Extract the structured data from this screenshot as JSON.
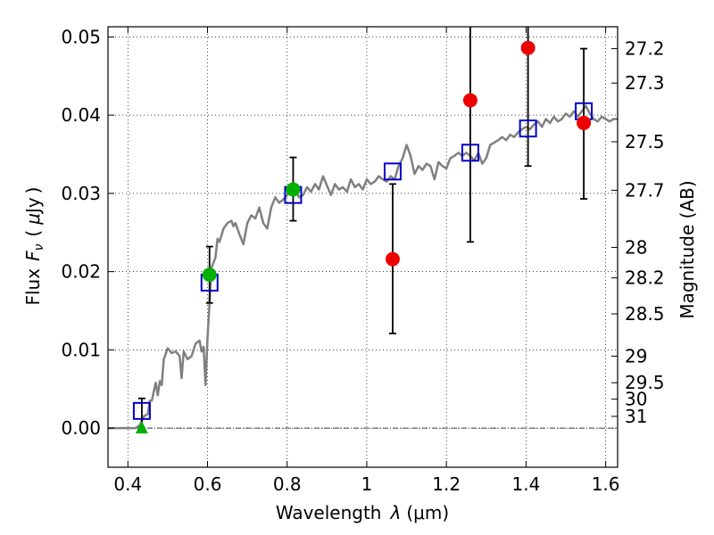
{
  "chart_data": {
    "type": "scatter",
    "xlabel": "Wavelength",
    "xlabel_symbol": "λ",
    "xlabel_unit_open": "(",
    "xlabel_unit": "μm",
    "xlabel_unit_close": ")",
    "ylabel": "Flux",
    "ylabel_symbol": "F",
    "ylabel_symbol_sub": "ν",
    "ylabel_unit_open": "(",
    "ylabel_unit_mu": "μ",
    "ylabel_unit": "Jy",
    "ylabel_unit_close": ")",
    "ylabel_right": "Magnitude (AB)",
    "xlim": [
      0.35,
      1.63
    ],
    "ylim": [
      -0.005,
      0.0513
    ],
    "grid": true,
    "x_ticks": [
      0.4,
      0.6,
      0.8,
      1.0,
      1.2,
      1.4,
      1.6
    ],
    "x_tick_labels": [
      "0.4",
      "0.6",
      "0.8",
      "1",
      "1.2",
      "1.4",
      "1.6"
    ],
    "y_ticks": [
      0.0,
      0.01,
      0.02,
      0.03,
      0.04,
      0.05
    ],
    "y_tick_labels": [
      "0.00",
      "0.01",
      "0.02",
      "0.03",
      "0.04",
      "0.05"
    ],
    "mag_ticks": [
      {
        "label": "27.2",
        "y": 0.0485
      },
      {
        "label": "27.3",
        "y": 0.0441
      },
      {
        "label": "27.5",
        "y": 0.0366
      },
      {
        "label": "27.7",
        "y": 0.0304
      },
      {
        "label": "28",
        "y": 0.0231
      },
      {
        "label": "28.2",
        "y": 0.0192
      },
      {
        "label": "28.5",
        "y": 0.0146
      },
      {
        "label": "29",
        "y": 0.0092
      },
      {
        "label": "29.5",
        "y": 0.0058
      },
      {
        "label": "30",
        "y": 0.0037
      },
      {
        "label": "31",
        "y": 0.0015
      }
    ],
    "model_spectrum": {
      "color": "#808080",
      "points": [
        [
          0.35,
          0.0
        ],
        [
          0.4,
          0.0
        ],
        [
          0.42,
          0.0
        ],
        [
          0.43,
          0.0004
        ],
        [
          0.44,
          0.0015
        ],
        [
          0.45,
          0.0018
        ],
        [
          0.455,
          0.0035
        ],
        [
          0.46,
          0.0035
        ],
        [
          0.47,
          0.0058
        ],
        [
          0.475,
          0.0042
        ],
        [
          0.48,
          0.006
        ],
        [
          0.485,
          0.0055
        ],
        [
          0.49,
          0.0088
        ],
        [
          0.495,
          0.0095
        ],
        [
          0.5,
          0.0102
        ],
        [
          0.51,
          0.0096
        ],
        [
          0.52,
          0.0098
        ],
        [
          0.53,
          0.0092
        ],
        [
          0.535,
          0.0064
        ],
        [
          0.54,
          0.0098
        ],
        [
          0.55,
          0.0088
        ],
        [
          0.56,
          0.0092
        ],
        [
          0.57,
          0.0108
        ],
        [
          0.58,
          0.0112
        ],
        [
          0.585,
          0.0098
        ],
        [
          0.59,
          0.0104
        ],
        [
          0.595,
          0.0055
        ],
        [
          0.6,
          0.0115
        ],
        [
          0.605,
          0.016
        ],
        [
          0.61,
          0.0205
        ],
        [
          0.62,
          0.0218
        ],
        [
          0.625,
          0.0242
        ],
        [
          0.63,
          0.0238
        ],
        [
          0.64,
          0.0255
        ],
        [
          0.65,
          0.0262
        ],
        [
          0.66,
          0.0265
        ],
        [
          0.665,
          0.0258
        ],
        [
          0.67,
          0.0262
        ],
        [
          0.68,
          0.0248
        ],
        [
          0.69,
          0.0235
        ],
        [
          0.7,
          0.0262
        ],
        [
          0.71,
          0.0272
        ],
        [
          0.72,
          0.0268
        ],
        [
          0.73,
          0.0282
        ],
        [
          0.74,
          0.0262
        ],
        [
          0.75,
          0.0255
        ],
        [
          0.76,
          0.0282
        ],
        [
          0.77,
          0.0295
        ],
        [
          0.78,
          0.0288
        ],
        [
          0.79,
          0.0292
        ],
        [
          0.8,
          0.0298
        ],
        [
          0.81,
          0.0302
        ],
        [
          0.82,
          0.0305
        ],
        [
          0.83,
          0.0295
        ],
        [
          0.84,
          0.0298
        ],
        [
          0.85,
          0.0308
        ],
        [
          0.86,
          0.0302
        ],
        [
          0.87,
          0.0312
        ],
        [
          0.88,
          0.0305
        ],
        [
          0.89,
          0.0322
        ],
        [
          0.9,
          0.031
        ],
        [
          0.91,
          0.0298
        ],
        [
          0.92,
          0.0312
        ],
        [
          0.93,
          0.0305
        ],
        [
          0.94,
          0.0308
        ],
        [
          0.95,
          0.0302
        ],
        [
          0.96,
          0.0318
        ],
        [
          0.97,
          0.0308
        ],
        [
          0.98,
          0.0312
        ],
        [
          0.99,
          0.0305
        ],
        [
          1.0,
          0.0318
        ],
        [
          1.01,
          0.0312
        ],
        [
          1.02,
          0.0315
        ],
        [
          1.03,
          0.0322
        ],
        [
          1.04,
          0.0318
        ],
        [
          1.05,
          0.0315
        ],
        [
          1.06,
          0.0322
        ],
        [
          1.07,
          0.0318
        ],
        [
          1.08,
          0.0335
        ],
        [
          1.09,
          0.0345
        ],
        [
          1.1,
          0.0362
        ],
        [
          1.11,
          0.0348
        ],
        [
          1.12,
          0.0325
        ],
        [
          1.13,
          0.0335
        ],
        [
          1.14,
          0.033
        ],
        [
          1.15,
          0.0338
        ],
        [
          1.16,
          0.0335
        ],
        [
          1.17,
          0.0318
        ],
        [
          1.18,
          0.034
        ],
        [
          1.19,
          0.0335
        ],
        [
          1.2,
          0.0332
        ],
        [
          1.21,
          0.0345
        ],
        [
          1.22,
          0.0348
        ],
        [
          1.23,
          0.0352
        ],
        [
          1.24,
          0.0348
        ],
        [
          1.25,
          0.0352
        ],
        [
          1.26,
          0.0348
        ],
        [
          1.27,
          0.0342
        ],
        [
          1.28,
          0.0352
        ],
        [
          1.29,
          0.0338
        ],
        [
          1.3,
          0.0345
        ],
        [
          1.31,
          0.0362
        ],
        [
          1.32,
          0.0365
        ],
        [
          1.33,
          0.0368
        ],
        [
          1.34,
          0.0372
        ],
        [
          1.35,
          0.0368
        ],
        [
          1.36,
          0.0375
        ],
        [
          1.37,
          0.0372
        ],
        [
          1.38,
          0.0378
        ],
        [
          1.39,
          0.0382
        ],
        [
          1.4,
          0.0385
        ],
        [
          1.41,
          0.0382
        ],
        [
          1.42,
          0.0388
        ],
        [
          1.43,
          0.0392
        ],
        [
          1.44,
          0.0385
        ],
        [
          1.45,
          0.0395
        ],
        [
          1.46,
          0.039
        ],
        [
          1.47,
          0.0398
        ],
        [
          1.48,
          0.0392
        ],
        [
          1.49,
          0.0395
        ],
        [
          1.5,
          0.0402
        ],
        [
          1.51,
          0.0398
        ],
        [
          1.52,
          0.0405
        ],
        [
          1.53,
          0.0398
        ],
        [
          1.54,
          0.0405
        ],
        [
          1.55,
          0.0412
        ],
        [
          1.56,
          0.0402
        ],
        [
          1.57,
          0.0395
        ],
        [
          1.58,
          0.0392
        ],
        [
          1.59,
          0.0398
        ],
        [
          1.6,
          0.0395
        ],
        [
          1.61,
          0.0392
        ],
        [
          1.62,
          0.0395
        ],
        [
          1.63,
          0.0395
        ]
      ]
    },
    "model_boxes": {
      "color": "#0000cc",
      "points": [
        {
          "x": 0.435,
          "y": 0.0022
        },
        {
          "x": 0.605,
          "y": 0.0186
        },
        {
          "x": 0.815,
          "y": 0.0298
        },
        {
          "x": 1.065,
          "y": 0.0328
        },
        {
          "x": 1.26,
          "y": 0.0352
        },
        {
          "x": 1.405,
          "y": 0.0383
        },
        {
          "x": 1.545,
          "y": 0.0405
        }
      ]
    },
    "observed_green": {
      "color": "#00b000",
      "points": [
        {
          "x": 0.605,
          "y": 0.0196,
          "err_lo": 0.016,
          "err_hi": 0.0232
        },
        {
          "x": 0.815,
          "y": 0.0305,
          "err_lo": 0.0265,
          "err_hi": 0.0346
        }
      ]
    },
    "observed_red": {
      "color": "#ee0000",
      "points": [
        {
          "x": 1.065,
          "y": 0.0216,
          "err_lo": 0.0121,
          "err_hi": 0.0312
        },
        {
          "x": 1.26,
          "y": 0.0419,
          "err_lo": 0.0238,
          "err_hi": 0.06
        },
        {
          "x": 1.405,
          "y": 0.0486,
          "err_lo": 0.0335,
          "err_hi": 0.06
        },
        {
          "x": 1.545,
          "y": 0.039,
          "err_lo": 0.0293,
          "err_hi": 0.0485
        }
      ]
    },
    "upper_limit": {
      "color": "#00b000",
      "x": 0.435,
      "y": 0.0,
      "err_lo": 0.0,
      "err_hi": 0.0038
    }
  }
}
